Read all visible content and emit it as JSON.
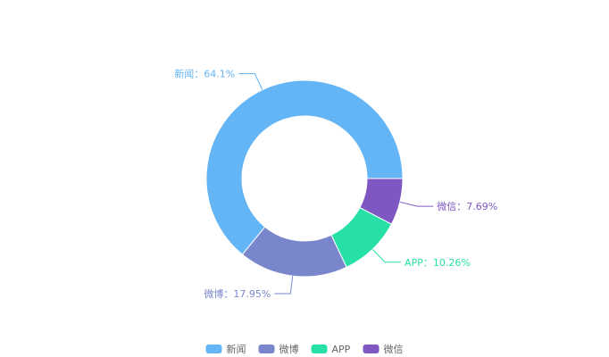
{
  "chart_data": {
    "type": "pie",
    "subtype": "donut",
    "title": "",
    "slices": [
      {
        "name": "新闻",
        "value": 64.1,
        "label": "新闻：64.1%",
        "color": "#64b5f6"
      },
      {
        "name": "微博",
        "value": 17.95,
        "label": "微博：17.95%",
        "color": "#7986cb"
      },
      {
        "name": "APP",
        "value": 10.26,
        "label": "APP：10.26%",
        "color": "#26e0a8"
      },
      {
        "name": "微信",
        "value": 7.69,
        "label": "微信：7.69%",
        "color": "#7e57c2"
      }
    ],
    "legend": {
      "placement": "bottom-center",
      "items": [
        "新闻",
        "微博",
        "APP",
        "微信"
      ]
    }
  }
}
